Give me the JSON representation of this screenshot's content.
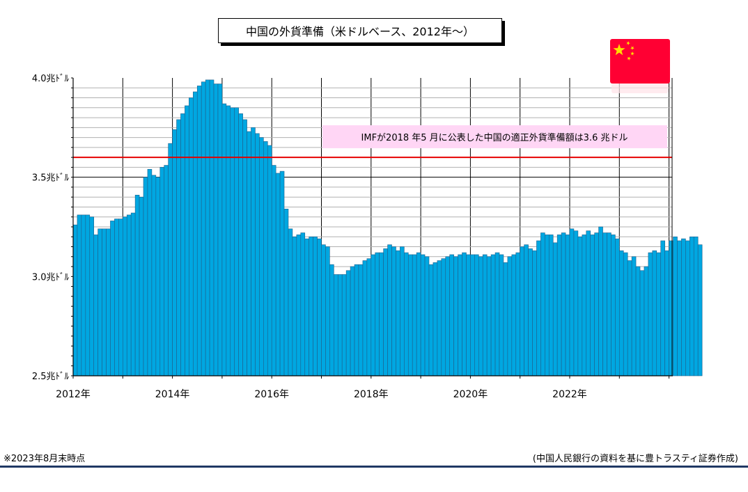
{
  "title": "中国の外貨準備（米ドルベース、2012年～）",
  "annotation": "IMFが2018 年5 月に公表した中国の適正外貨準備額は3.6 兆ドル",
  "footnote": "※2023年8月末時点",
  "source": "(中国人民銀行の資料を基に豊トラスティ証券作成)",
  "flag_icon": "china-flag-icon",
  "colors": {
    "bar": "#00a7e1",
    "bar_edge": "#1f5f8b",
    "reference_line": "#e60000",
    "annotation_bg": "#ffd6f5",
    "flag_red": "#ff0033",
    "flag_star": "#ffde00",
    "rule": "#1f3864"
  },
  "chart_data": {
    "type": "bar",
    "title": "中国の外貨準備（米ドルベース、2012年～）",
    "xlabel": "",
    "ylabel": "",
    "unit": "兆ドル",
    "ylim": [
      2.5,
      4.0
    ],
    "yticks": [
      {
        "value": 4.0,
        "label": "4.0兆ﾄﾞﾙ"
      },
      {
        "value": 3.5,
        "label": "3.5兆ﾄﾞﾙ"
      },
      {
        "value": 3.0,
        "label": "3.0兆ﾄﾞﾙ"
      },
      {
        "value": 2.5,
        "label": "2.5兆ﾄﾞﾙ"
      }
    ],
    "xticks": [
      "2012年",
      "2014年",
      "2016年",
      "2018年",
      "2020年",
      "2022年"
    ],
    "start": "2012-01",
    "end": "2023-08",
    "grid": true,
    "reference_line": {
      "value": 3.6,
      "label": "IMFが2018 年5 月に公表した中国の適正外貨準備額は3.6 兆ドル"
    },
    "values": [
      3.26,
      3.31,
      3.31,
      3.31,
      3.3,
      3.21,
      3.24,
      3.24,
      3.24,
      3.28,
      3.29,
      3.29,
      3.3,
      3.31,
      3.32,
      3.41,
      3.4,
      3.5,
      3.54,
      3.51,
      3.5,
      3.55,
      3.56,
      3.67,
      3.74,
      3.79,
      3.82,
      3.86,
      3.9,
      3.93,
      3.96,
      3.98,
      3.99,
      3.99,
      3.97,
      3.97,
      3.87,
      3.86,
      3.85,
      3.85,
      3.82,
      3.79,
      3.73,
      3.75,
      3.72,
      3.7,
      3.68,
      3.66,
      3.56,
      3.52,
      3.53,
      3.34,
      3.24,
      3.2,
      3.21,
      3.22,
      3.19,
      3.2,
      3.2,
      3.19,
      3.16,
      3.15,
      3.06,
      3.01,
      3.01,
      3.01,
      3.03,
      3.05,
      3.06,
      3.06,
      3.08,
      3.09,
      3.11,
      3.12,
      3.12,
      3.14,
      3.16,
      3.15,
      3.13,
      3.15,
      3.12,
      3.11,
      3.11,
      3.12,
      3.11,
      3.1,
      3.06,
      3.07,
      3.08,
      3.09,
      3.1,
      3.11,
      3.1,
      3.11,
      3.12,
      3.11,
      3.11,
      3.11,
      3.1,
      3.11,
      3.1,
      3.11,
      3.12,
      3.11,
      3.07,
      3.1,
      3.11,
      3.12,
      3.15,
      3.16,
      3.14,
      3.13,
      3.18,
      3.22,
      3.21,
      3.21,
      3.17,
      3.21,
      3.22,
      3.21,
      3.24,
      3.23,
      3.2,
      3.21,
      3.23,
      3.21,
      3.22,
      3.25,
      3.22,
      3.22,
      3.21,
      3.19,
      3.13,
      3.12,
      3.08,
      3.1,
      3.05,
      3.03,
      3.05,
      3.12,
      3.13,
      3.12,
      3.18,
      3.13,
      3.18,
      3.2,
      3.18,
      3.19,
      3.18,
      3.2,
      3.2,
      3.16
    ]
  }
}
